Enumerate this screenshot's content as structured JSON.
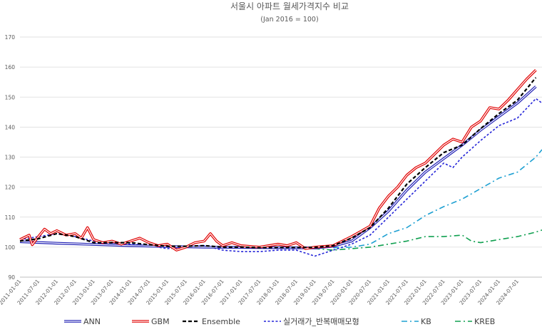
{
  "chart_data": {
    "type": "line",
    "title": "서울시 아파트 월세가격지수 비교",
    "subtitle": "(Jan 2016 = 100)",
    "xlabel": "",
    "ylabel": "",
    "ylim": [
      90,
      170
    ],
    "yticks": [
      90,
      100,
      110,
      120,
      130,
      140,
      150,
      160,
      170
    ],
    "grid": true,
    "legend_position": "bottom",
    "xticks": [
      "2011-01-01",
      "2011-07-01",
      "2012-01-01",
      "2012-07-01",
      "2013-01-01",
      "2013-07-01",
      "2014-01-01",
      "2014-07-01",
      "2015-01-01",
      "2015-07-01",
      "2016-01-01",
      "2016-07-01",
      "2017-01-01",
      "2017-07-01",
      "2018-01-01",
      "2018-07-01",
      "2019-01-01",
      "2019-07-01",
      "2020-01-01",
      "2020-07-01",
      "2021-01-01",
      "2021-07-01",
      "2022-01-01",
      "2022-07-01",
      "2023-01-01",
      "2023-07-01",
      "2024-01-01",
      "2024-07-01"
    ],
    "series": [
      {
        "name": "ANN",
        "color": "#1f1fb4",
        "style": "double",
        "points": [
          [
            "2011-01-01",
            101.8
          ],
          [
            "2012-01-01",
            101.3
          ],
          [
            "2013-01-01",
            100.9
          ],
          [
            "2014-01-01",
            100.5
          ],
          [
            "2015-01-01",
            100.2
          ],
          [
            "2016-01-01",
            100.0
          ],
          [
            "2017-01-01",
            99.9
          ],
          [
            "2018-01-01",
            99.8
          ],
          [
            "2019-01-01",
            99.7
          ],
          [
            "2019-07-01",
            100.3
          ],
          [
            "2020-01-01",
            102.0
          ],
          [
            "2020-07-01",
            106.5
          ],
          [
            "2021-01-01",
            112.0
          ],
          [
            "2021-07-01",
            119.0
          ],
          [
            "2022-01-01",
            125.0
          ],
          [
            "2022-07-01",
            129.5
          ],
          [
            "2023-01-01",
            134.0
          ],
          [
            "2023-07-01",
            139.0
          ],
          [
            "2024-01-01",
            143.5
          ],
          [
            "2024-07-01",
            148.0
          ],
          [
            "2025-01-01",
            153.5
          ]
        ]
      },
      {
        "name": "GBM",
        "color": "#e00000",
        "style": "double",
        "points": [
          [
            "2011-01-01",
            102.5
          ],
          [
            "2011-04-01",
            104.0
          ],
          [
            "2011-05-01",
            100.8
          ],
          [
            "2011-07-01",
            103.5
          ],
          [
            "2011-09-01",
            106.0
          ],
          [
            "2011-11-01",
            104.5
          ],
          [
            "2012-01-01",
            105.5
          ],
          [
            "2012-04-01",
            104.0
          ],
          [
            "2012-07-01",
            104.5
          ],
          [
            "2012-09-01",
            103.0
          ],
          [
            "2012-11-01",
            106.5
          ],
          [
            "2013-01-01",
            102.5
          ],
          [
            "2013-04-01",
            101.5
          ],
          [
            "2013-07-01",
            102.0
          ],
          [
            "2013-10-01",
            101.0
          ],
          [
            "2014-01-01",
            102.0
          ],
          [
            "2014-04-01",
            103.0
          ],
          [
            "2014-07-01",
            101.5
          ],
          [
            "2014-10-01",
            100.5
          ],
          [
            "2015-01-01",
            101.0
          ],
          [
            "2015-04-01",
            99.0
          ],
          [
            "2015-07-01",
            100.0
          ],
          [
            "2015-10-01",
            101.5
          ],
          [
            "2016-01-01",
            102.0
          ],
          [
            "2016-03-01",
            104.5
          ],
          [
            "2016-05-01",
            102.0
          ],
          [
            "2016-07-01",
            100.5
          ],
          [
            "2016-10-01",
            101.5
          ],
          [
            "2017-01-01",
            100.5
          ],
          [
            "2017-07-01",
            100.0
          ],
          [
            "2017-10-01",
            100.5
          ],
          [
            "2018-01-01",
            101.0
          ],
          [
            "2018-04-01",
            100.5
          ],
          [
            "2018-07-01",
            101.5
          ],
          [
            "2018-10-01",
            99.5
          ],
          [
            "2019-01-01",
            100.0
          ],
          [
            "2019-07-01",
            100.5
          ],
          [
            "2020-01-01",
            103.5
          ],
          [
            "2020-07-01",
            107.0
          ],
          [
            "2020-10-01",
            113.0
          ],
          [
            "2021-01-01",
            117.0
          ],
          [
            "2021-04-01",
            120.0
          ],
          [
            "2021-07-01",
            124.0
          ],
          [
            "2021-10-01",
            126.5
          ],
          [
            "2022-01-01",
            128.0
          ],
          [
            "2022-04-01",
            131.0
          ],
          [
            "2022-07-01",
            134.0
          ],
          [
            "2022-10-01",
            136.0
          ],
          [
            "2023-01-01",
            135.0
          ],
          [
            "2023-04-01",
            140.0
          ],
          [
            "2023-07-01",
            142.0
          ],
          [
            "2023-10-01",
            146.5
          ],
          [
            "2024-01-01",
            146.0
          ],
          [
            "2024-04-01",
            149.0
          ],
          [
            "2024-07-01",
            152.5
          ],
          [
            "2024-10-01",
            156.0
          ],
          [
            "2025-01-01",
            159.0
          ]
        ]
      },
      {
        "name": "Ensemble",
        "color": "#000000",
        "style": "dashed",
        "points": [
          [
            "2011-01-01",
            102.0
          ],
          [
            "2011-07-01",
            102.8
          ],
          [
            "2012-01-01",
            104.5
          ],
          [
            "2012-07-01",
            103.5
          ],
          [
            "2013-01-01",
            101.5
          ],
          [
            "2013-07-01",
            101.5
          ],
          [
            "2014-01-01",
            101.5
          ],
          [
            "2014-07-01",
            100.8
          ],
          [
            "2015-01-01",
            100.3
          ],
          [
            "2015-07-01",
            100.3
          ],
          [
            "2016-01-01",
            100.5
          ],
          [
            "2016-07-01",
            100.0
          ],
          [
            "2017-01-01",
            100.0
          ],
          [
            "2017-07-01",
            99.8
          ],
          [
            "2018-01-01",
            99.9
          ],
          [
            "2018-07-01",
            99.9
          ],
          [
            "2019-01-01",
            99.9
          ],
          [
            "2019-07-01",
            100.5
          ],
          [
            "2020-01-01",
            103.0
          ],
          [
            "2020-07-01",
            106.5
          ],
          [
            "2021-01-01",
            113.0
          ],
          [
            "2021-07-01",
            121.0
          ],
          [
            "2022-01-01",
            126.5
          ],
          [
            "2022-07-01",
            131.5
          ],
          [
            "2023-01-01",
            134.0
          ],
          [
            "2023-07-01",
            139.5
          ],
          [
            "2024-01-01",
            144.5
          ],
          [
            "2024-07-01",
            149.0
          ],
          [
            "2025-01-01",
            156.5
          ]
        ]
      },
      {
        "name": "실거래가_반복매매모형",
        "color": "#2424d8",
        "style": "dotted",
        "points": [
          [
            "2011-01-01",
            102.5
          ],
          [
            "2011-07-01",
            103.5
          ],
          [
            "2012-01-01",
            104.5
          ],
          [
            "2012-07-01",
            103.5
          ],
          [
            "2013-01-01",
            102.0
          ],
          [
            "2013-07-01",
            101.5
          ],
          [
            "2014-01-01",
            101.0
          ],
          [
            "2014-07-01",
            100.5
          ],
          [
            "2015-01-01",
            99.5
          ],
          [
            "2015-07-01",
            100.0
          ],
          [
            "2016-01-01",
            100.5
          ],
          [
            "2016-07-01",
            99.0
          ],
          [
            "2017-01-01",
            98.5
          ],
          [
            "2017-07-01",
            98.5
          ],
          [
            "2018-01-01",
            99.0
          ],
          [
            "2018-07-01",
            99.0
          ],
          [
            "2019-01-01",
            97.0
          ],
          [
            "2019-04-01",
            98.0
          ],
          [
            "2019-07-01",
            99.0
          ],
          [
            "2020-01-01",
            101.0
          ],
          [
            "2020-07-01",
            104.0
          ],
          [
            "2021-01-01",
            110.0
          ],
          [
            "2021-07-01",
            116.0
          ],
          [
            "2022-01-01",
            122.0
          ],
          [
            "2022-07-01",
            128.0
          ],
          [
            "2022-10-01",
            126.5
          ],
          [
            "2023-01-01",
            130.0
          ],
          [
            "2023-07-01",
            135.5
          ],
          [
            "2024-01-01",
            140.5
          ],
          [
            "2024-07-01",
            143.0
          ],
          [
            "2025-01-01",
            149.5
          ],
          [
            "2025-03-01",
            148.0
          ]
        ]
      },
      {
        "name": "KB",
        "color": "#1ea0d2",
        "style": "dashdot",
        "points": [
          [
            "2019-07-01",
            99.8
          ],
          [
            "2020-01-01",
            100.0
          ],
          [
            "2020-07-01",
            101.0
          ],
          [
            "2021-01-01",
            104.5
          ],
          [
            "2021-07-01",
            106.5
          ],
          [
            "2022-01-01",
            110.5
          ],
          [
            "2022-07-01",
            113.5
          ],
          [
            "2023-01-01",
            116.0
          ],
          [
            "2023-07-01",
            119.5
          ],
          [
            "2024-01-01",
            123.0
          ],
          [
            "2024-07-01",
            125.0
          ],
          [
            "2025-01-01",
            130.0
          ],
          [
            "2025-03-01",
            132.5
          ]
        ]
      },
      {
        "name": "KREB",
        "color": "#10a050",
        "style": "dashdot",
        "points": [
          [
            "2015-07-01",
            100.0
          ],
          [
            "2016-01-01",
            100.0
          ],
          [
            "2017-01-01",
            100.0
          ],
          [
            "2018-01-01",
            99.8
          ],
          [
            "2019-01-01",
            99.5
          ],
          [
            "2019-07-01",
            99.0
          ],
          [
            "2020-01-01",
            99.5
          ],
          [
            "2020-07-01",
            100.0
          ],
          [
            "2021-01-01",
            101.0
          ],
          [
            "2021-07-01",
            102.0
          ],
          [
            "2022-01-01",
            103.5
          ],
          [
            "2022-07-01",
            103.5
          ],
          [
            "2023-01-01",
            104.0
          ],
          [
            "2023-04-01",
            102.0
          ],
          [
            "2023-07-01",
            101.5
          ],
          [
            "2024-01-01",
            102.5
          ],
          [
            "2024-07-01",
            103.5
          ],
          [
            "2025-01-01",
            105.0
          ],
          [
            "2025-03-01",
            105.7
          ]
        ]
      }
    ]
  }
}
